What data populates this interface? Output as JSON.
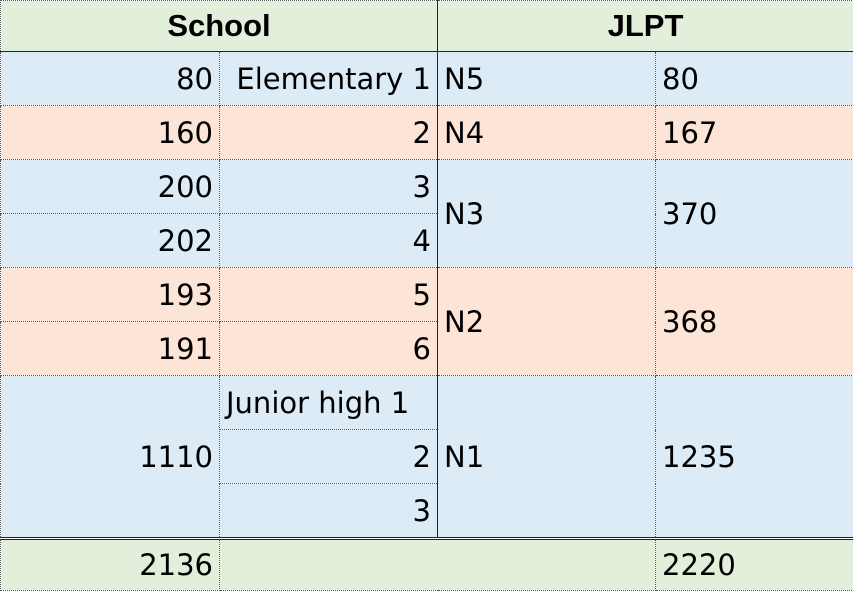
{
  "header": {
    "school": "School",
    "jlpt": "JLPT"
  },
  "rows": [
    {
      "school_words": "80",
      "grade": "Elementary 1",
      "jlpt_level": "N5",
      "jlpt_words": "80"
    },
    {
      "school_words": "160",
      "grade": "2",
      "jlpt_level": "N4",
      "jlpt_words": "167"
    },
    {
      "school_words": "200",
      "grade": "3",
      "jlpt_level": "N3",
      "jlpt_words": "370"
    },
    {
      "school_words": "202",
      "grade": "4"
    },
    {
      "school_words": "193",
      "grade": "5",
      "jlpt_level": "N2",
      "jlpt_words": "368"
    },
    {
      "school_words": "191",
      "grade": "6"
    },
    {
      "school_words": "1110",
      "grade": "Junior high 1",
      "jlpt_level": "N1",
      "jlpt_words": "1235"
    },
    {
      "grade": "2"
    },
    {
      "grade": "3"
    }
  ],
  "totals": {
    "school": "2136",
    "jlpt": "2220"
  },
  "colors": {
    "green": "#e2efda",
    "blue": "#ddebf7",
    "peach": "#fce4d6"
  }
}
